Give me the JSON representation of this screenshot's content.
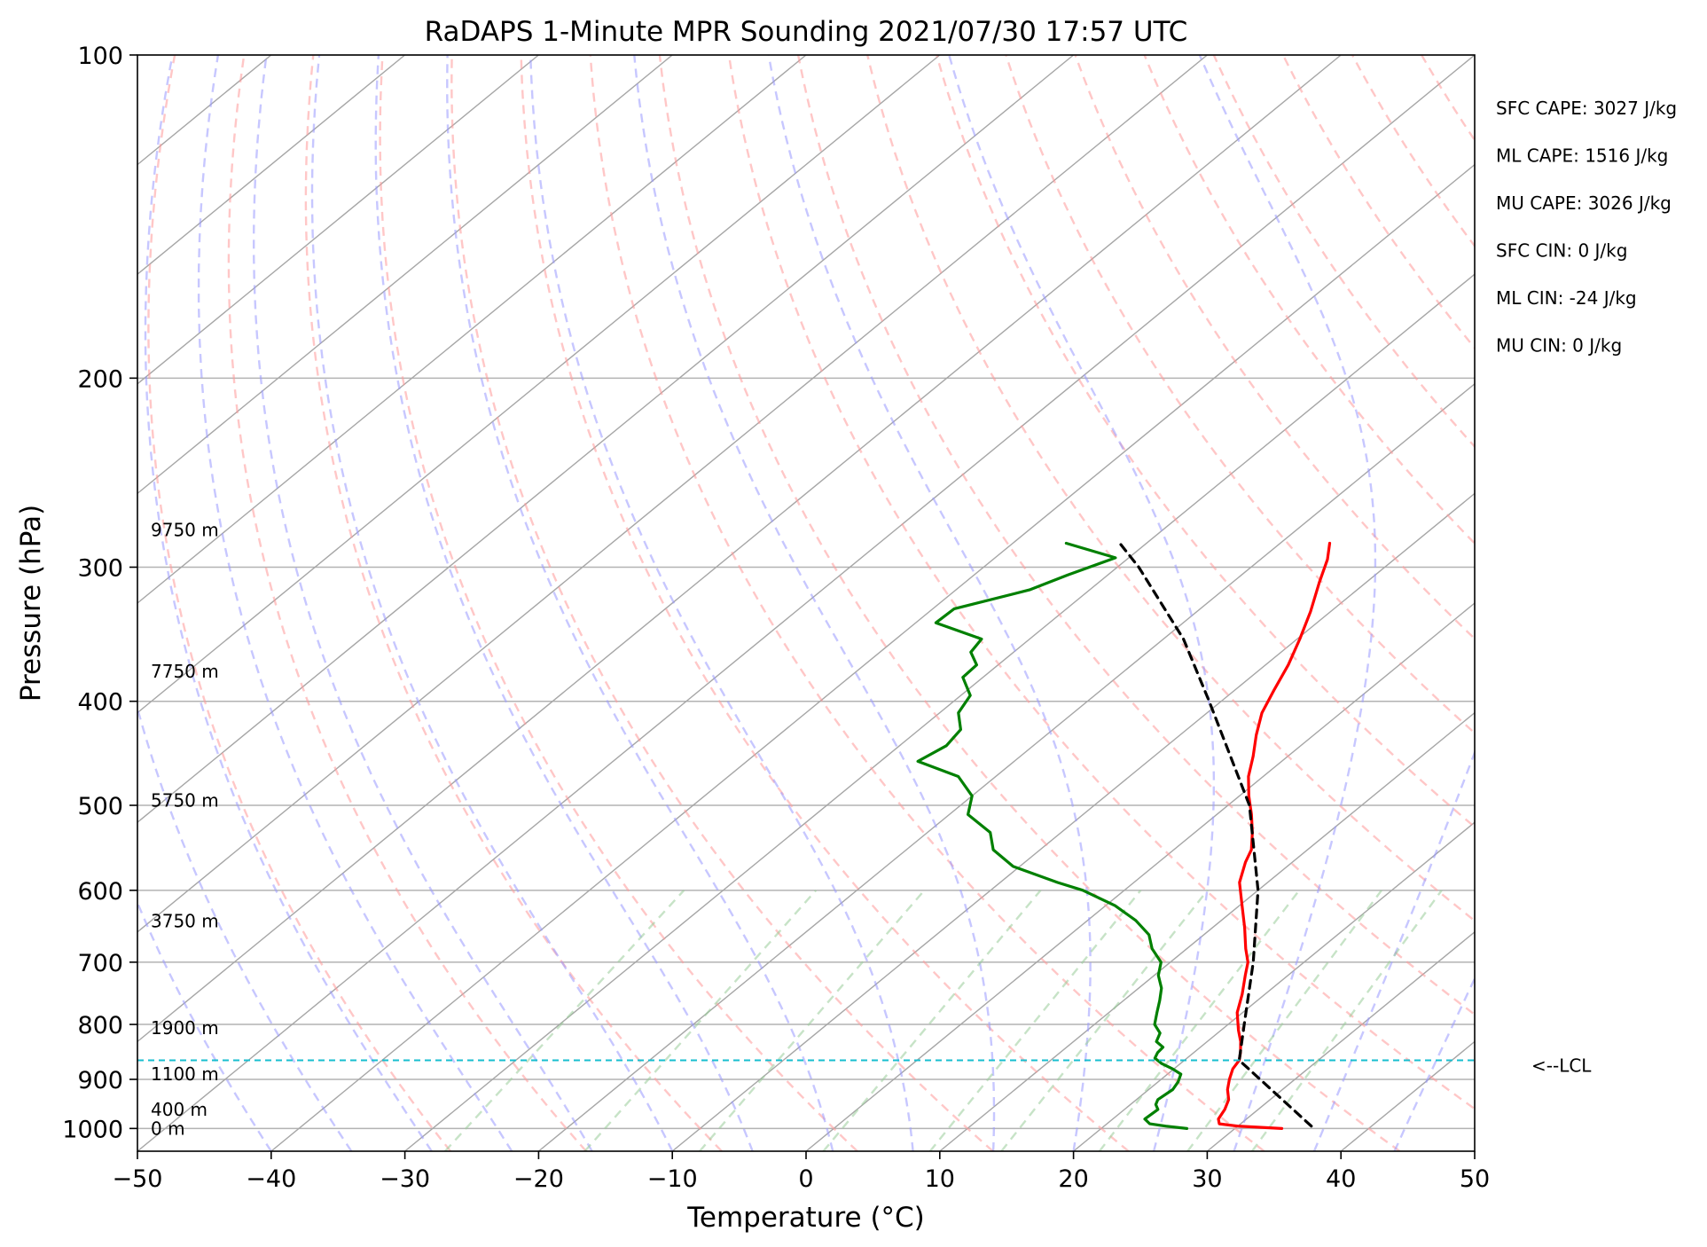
{
  "colors": {
    "temperature": "#ff0000",
    "dewpoint": "#008000",
    "parcel": "#000000",
    "isotherm": "#a6a6a6",
    "isobar": "#b3b3b3",
    "dry_adiabat": "#ff9999",
    "moist_adiabat": "#9999ff",
    "mixing_ratio": "#99cc99",
    "lcl": "#17becf"
  },
  "chart_data": {
    "type": "line",
    "title": "RaDAPS 1-Minute MPR Sounding 2021/07/30 17:57 UTC",
    "xlabel": "Temperature (°C)",
    "ylabel": "Pressure (hPa)",
    "xlim": [
      -50,
      50
    ],
    "ylim": [
      1050,
      100
    ],
    "y_scale": "log",
    "grid": true,
    "x_ticks": [
      "−50",
      "−40",
      "−30",
      "−20",
      "−10",
      "0",
      "10",
      "20",
      "30",
      "40",
      "50"
    ],
    "y_ticks": [
      "100",
      "200",
      "300",
      "400",
      "500",
      "600",
      "700",
      "800",
      "900",
      "1000"
    ],
    "height_labels": [
      {
        "text": "9750 m",
        "p": 277
      },
      {
        "text": "7750 m",
        "p": 375
      },
      {
        "text": "5750 m",
        "p": 495
      },
      {
        "text": "3750 m",
        "p": 641
      },
      {
        "text": "1900 m",
        "p": 806
      },
      {
        "text": "1100 m",
        "p": 890
      },
      {
        "text": "400 m",
        "p": 960
      },
      {
        "text": "0 m",
        "p": 1000
      }
    ],
    "indices": [
      "SFC CAPE: 3027 J/kg",
      "ML CAPE: 1516 J/kg",
      "MU CAPE: 3026 J/kg",
      "SFC CIN: 0 J/kg",
      "ML CIN: -24 J/kg",
      "MU CIN: 0 J/kg"
    ],
    "lcl": {
      "p": 864,
      "label": "<--LCL"
    },
    "series": [
      {
        "key": "temperature",
        "p": [
          1000,
          995,
          990,
          980,
          960,
          940,
          920,
          900,
          880,
          864,
          850,
          830,
          810,
          780,
          750,
          720,
          700,
          680,
          650,
          620,
          590,
          565,
          550,
          530,
          510,
          490,
          470,
          450,
          430,
          410,
          390,
          370,
          350,
          330,
          310,
          295,
          285
        ],
        "t": [
          33.5,
          30.0,
          28.4,
          27.9,
          27.5,
          26.9,
          25.9,
          25.1,
          24.4,
          24.1,
          23.5,
          22.5,
          21.3,
          19.6,
          18.3,
          16.8,
          15.8,
          14.4,
          12.4,
          10.2,
          7.9,
          6.5,
          5.8,
          4.3,
          2.6,
          0.7,
          -1.1,
          -2.6,
          -4.3,
          -5.9,
          -7.1,
          -8.3,
          -9.8,
          -11.5,
          -13.5,
          -15.0,
          -16.3
        ]
      },
      {
        "key": "dewpoint",
        "p": [
          1000,
          995,
          990,
          980,
          960,
          950,
          940,
          920,
          905,
          890,
          880,
          870,
          860,
          850,
          840,
          830,
          815,
          800,
          780,
          760,
          740,
          720,
          700,
          680,
          660,
          640,
          620,
          600,
          590,
          570,
          550,
          530,
          510,
          490,
          470,
          455,
          440,
          425,
          410,
          395,
          380,
          370,
          360,
          350,
          338,
          328,
          315,
          305,
          294,
          285
        ],
        "t": [
          26.4,
          24.6,
          23.2,
          22.4,
          22.5,
          21.9,
          21.6,
          21.8,
          21.5,
          21.0,
          19.9,
          18.6,
          17.6,
          17.3,
          17.2,
          16.2,
          15.7,
          14.5,
          13.6,
          12.7,
          11.7,
          10.3,
          9.3,
          7.4,
          5.9,
          3.6,
          0.7,
          -3.1,
          -5.7,
          -10.5,
          -13.5,
          -15.3,
          -18.6,
          -20.0,
          -22.8,
          -27.2,
          -26.5,
          -26.9,
          -28.6,
          -29.3,
          -31.5,
          -31.6,
          -33.2,
          -33.6,
          -38.5,
          -38.4,
          -34.5,
          -33.0,
          -31.0,
          -36.0
        ]
      },
      {
        "key": "parcel",
        "p": [
          995,
          864,
          800,
          700,
          600,
          500,
          400,
          350,
          300,
          285
        ],
        "t": [
          35.5,
          24.1,
          21.2,
          16.2,
          10.0,
          1.6,
          -10.9,
          -18.5,
          -28.4,
          -32.0
        ]
      }
    ]
  }
}
